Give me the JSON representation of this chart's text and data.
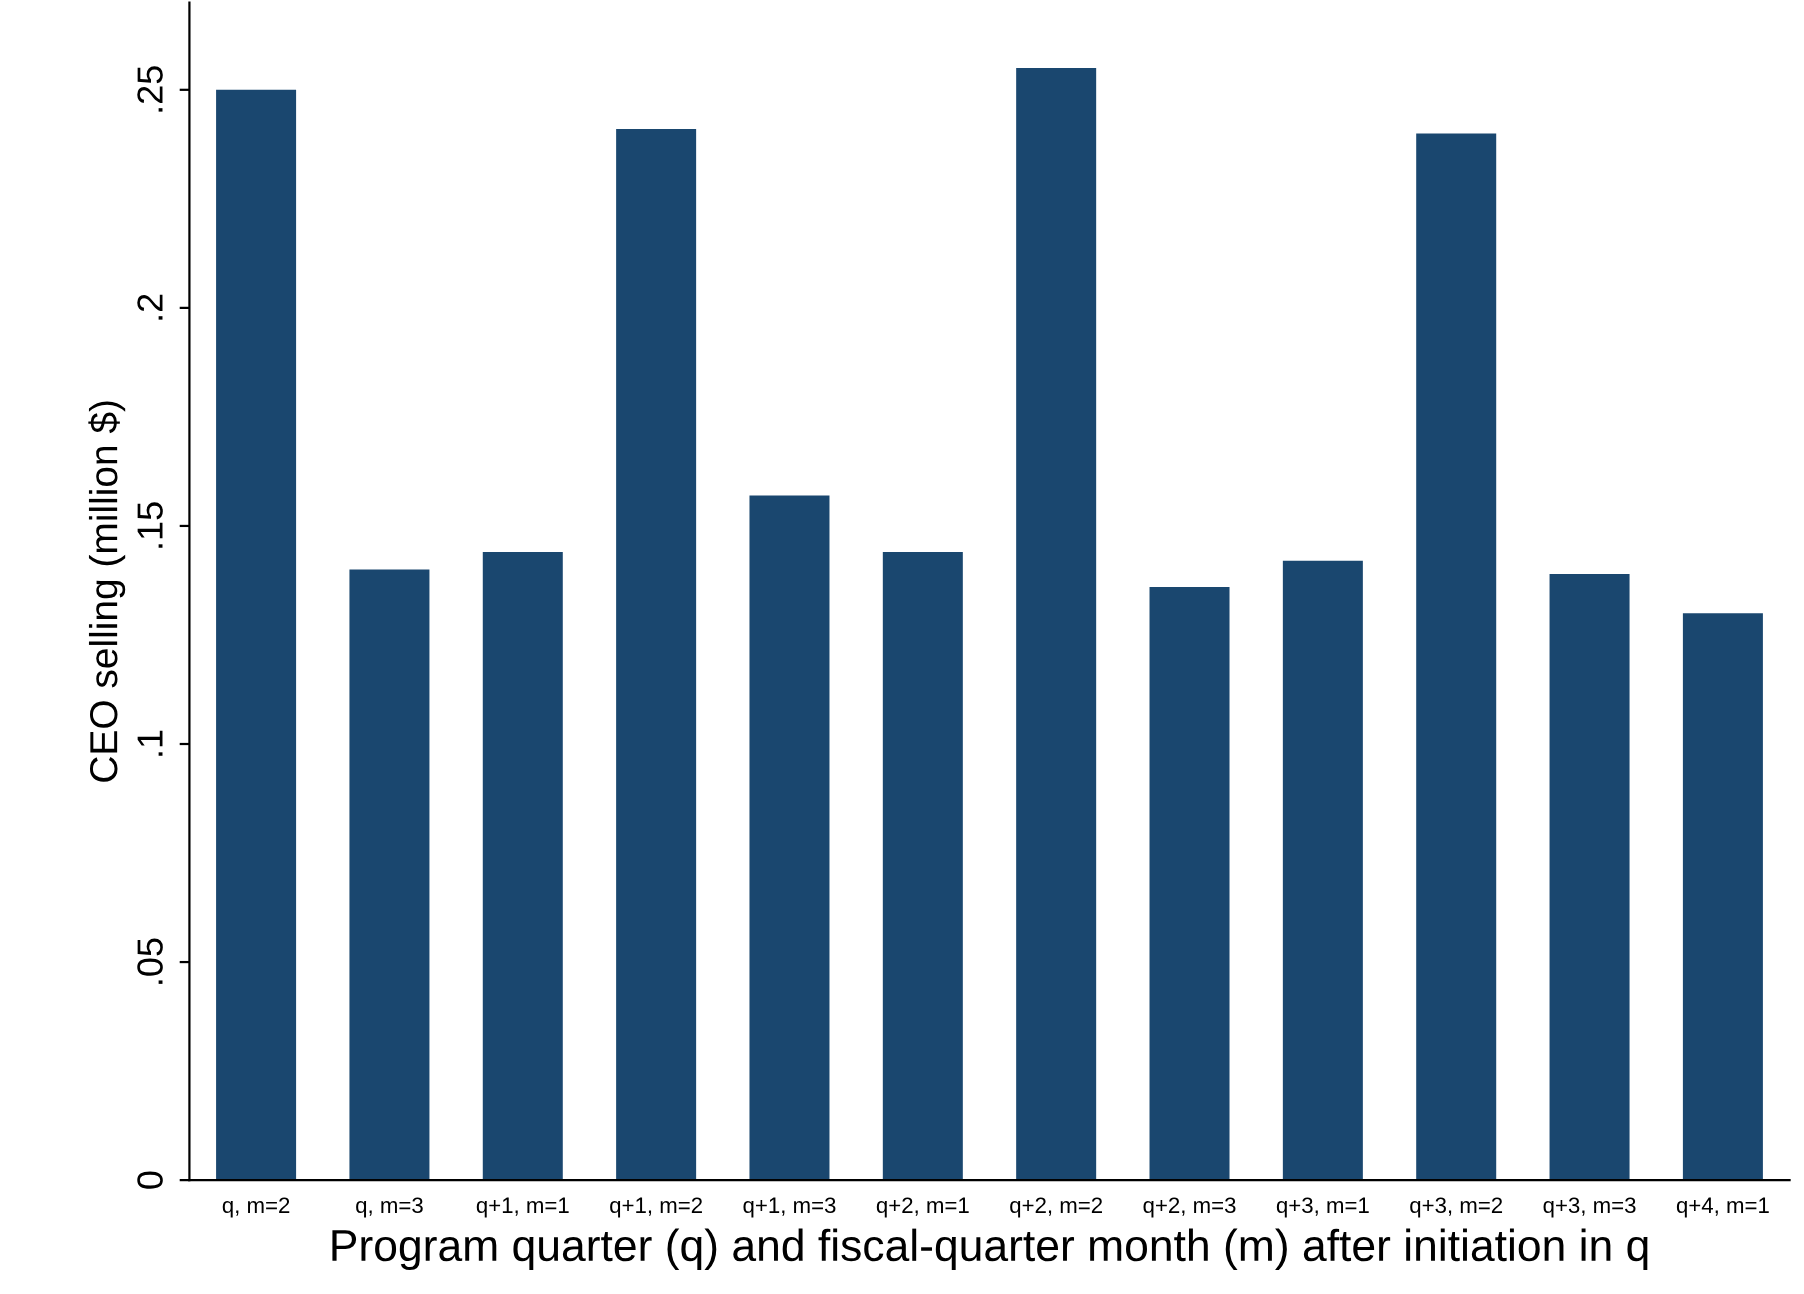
{
  "chart_data": {
    "type": "bar",
    "xlabel": "Program quarter (q) and fiscal-quarter month (m) after initiation in q",
    "ylabel": "CEO selling (million $)",
    "categories": [
      "q, m=2",
      "q, m=3",
      "q+1, m=1",
      "q+1, m=2",
      "q+1, m=3",
      "q+2, m=1",
      "q+2, m=2",
      "q+2, m=3",
      "q+3, m=1",
      "q+3, m=2",
      "q+3, m=3",
      "q+4, m=1"
    ],
    "values": [
      0.25,
      0.14,
      0.144,
      0.241,
      0.157,
      0.144,
      0.255,
      0.136,
      0.142,
      0.24,
      0.139,
      0.13
    ],
    "color": "#1a476f",
    "ylim": [
      0,
      0.27
    ],
    "yticks": [
      0,
      {
        "value": 0.05,
        "label": ".05"
      },
      {
        "value": 0.1,
        "label": ".1"
      },
      {
        "value": 0.15,
        "label": ".15"
      },
      {
        "value": 0.2,
        "label": ".2"
      },
      {
        "value": 0.25,
        "label": ".25"
      }
    ],
    "grid": false,
    "legend": false
  }
}
